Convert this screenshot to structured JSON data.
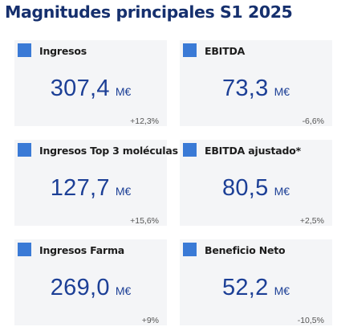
{
  "title": "Magnitudes principales S1 2025",
  "colors": {
    "title": "#16306e",
    "value": "#1c3f96",
    "marker": "#3a7ad6",
    "card_bg": "#f4f5f7"
  },
  "cards": [
    {
      "label": "Ingresos",
      "value": "307,4",
      "unit": "M€",
      "change": "+12,3%"
    },
    {
      "label": "EBITDA",
      "value": "73,3",
      "unit": "M€",
      "change": "-6,6%"
    },
    {
      "label": "Ingresos Top 3 moléculas",
      "value": "127,7",
      "unit": "M€",
      "change": "+15,6%"
    },
    {
      "label": "EBITDA ajustado*",
      "value": "80,5",
      "unit": "M€",
      "change": "+2,5%"
    },
    {
      "label": "Ingresos Farma",
      "value": "269,0",
      "unit": "M€",
      "change": "+9%"
    },
    {
      "label": "Beneficio Neto",
      "value": "52,2",
      "unit": "M€",
      "change": "-10,5%"
    }
  ]
}
